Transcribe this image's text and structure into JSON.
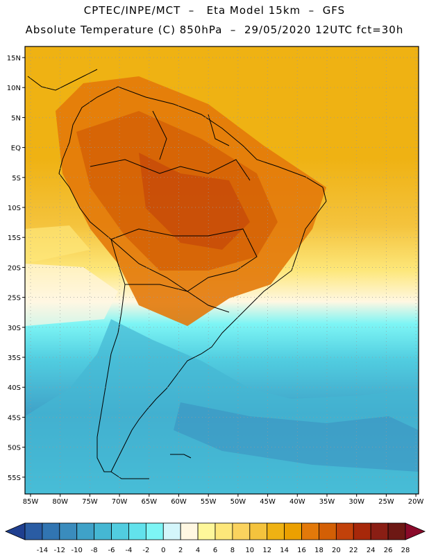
{
  "header": {
    "line1": "CPTEC/INPE/MCT  –   Eta Model 15km  –  GFS",
    "line2": "Absolute Temperature (C) 850hPa  –  29/05/2020 12UTC fct=30h"
  },
  "map": {
    "lat_labels": [
      "15N",
      "10N",
      "5N",
      "EQ",
      "5S",
      "10S",
      "15S",
      "20S",
      "25S",
      "30S",
      "35S",
      "40S",
      "45S",
      "50S",
      "55S"
    ],
    "lon_labels": [
      "85W",
      "80W",
      "75W",
      "70W",
      "65W",
      "60W",
      "55W",
      "50W",
      "45W",
      "40W",
      "35W",
      "30W",
      "25W",
      "20W"
    ]
  },
  "colorbar": {
    "labels": [
      "-14",
      "-12",
      "-10",
      "-8",
      "-6",
      "-4",
      "-2",
      "0",
      "2",
      "4",
      "6",
      "8",
      "10",
      "12",
      "14",
      "16",
      "18",
      "20",
      "22",
      "24",
      "26",
      "28"
    ],
    "colors": [
      "#1f3f8f",
      "#2a5ca3",
      "#3175b2",
      "#3a8cbd",
      "#3fa2c8",
      "#45b7d3",
      "#51cde0",
      "#62e2ec",
      "#7df5f5",
      "#d4f6fb",
      "#fff7e2",
      "#fef79a",
      "#fde77a",
      "#fad35e",
      "#f4c33d",
      "#efb213",
      "#eba000",
      "#e3790a",
      "#d35f05",
      "#c2410a",
      "#a7280a",
      "#8a1e14",
      "#6d1814",
      "#8a0a2a"
    ]
  }
}
